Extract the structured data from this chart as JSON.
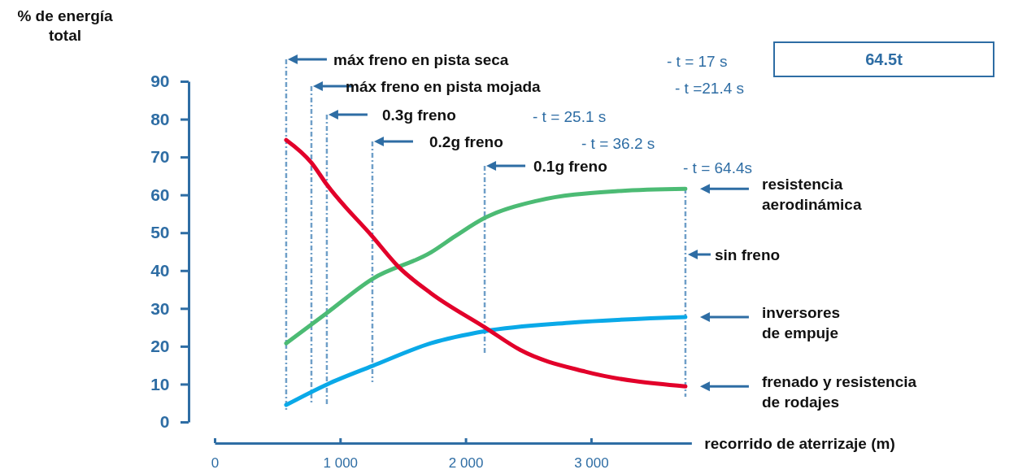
{
  "chart_data": {
    "type": "line",
    "ylabel": "% de energía total",
    "xlabel": "recorrido de aterrizaje (m)",
    "xlim": [
      0,
      3800
    ],
    "xticks": [
      0,
      {
        "value": 1000,
        "label": "1 000"
      },
      {
        "value": 2000,
        "label": "2 000"
      },
      {
        "value": 3000,
        "label": "3 000"
      }
    ],
    "ylim": [
      0,
      90
    ],
    "yticks": [
      0,
      10,
      20,
      30,
      40,
      50,
      60,
      70,
      80,
      90
    ],
    "grid": false,
    "marker": "none",
    "line_style": "solid",
    "series": [
      {
        "name": "resistencia aerodinámica",
        "color": "#4cbb74",
        "x": [
          570,
          894,
          1257,
          1724,
          1918,
          2158,
          2566,
          3215,
          3752
        ],
        "values": [
          20.8,
          28.8,
          37.8,
          44.8,
          49.1,
          54,
          58.4,
          61,
          61.6
        ]
      },
      {
        "name": "inversores de empuje",
        "color": "#0aa9e8",
        "x": [
          570,
          894,
          1257,
          1724,
          2158,
          2826,
          3752
        ],
        "values": [
          4.5,
          9.9,
          14.8,
          20.8,
          24,
          26.2,
          27.7
        ]
      },
      {
        "name": "frenado y resistencia de rodajes",
        "color": "#e2002a",
        "x": [
          570,
          771,
          894,
          1257,
          1465,
          1724,
          2158,
          2437,
          2955,
          3752
        ],
        "values": [
          74.5,
          68.5,
          62.7,
          49,
          41,
          34,
          24.9,
          19,
          13.3,
          9.4
        ]
      }
    ],
    "ref_lines": [
      {
        "axis": "x",
        "value": 570,
        "label": "máx freno en pista seca",
        "color": "#6f9fc8",
        "line_style": "dashed"
      },
      {
        "axis": "x",
        "value": 771,
        "label": "máx freno en pista mojada",
        "color": "#6f9fc8",
        "line_style": "dashed"
      },
      {
        "axis": "x",
        "value": 894,
        "label": "0.3g freno",
        "color": "#6f9fc8",
        "line_style": "dashed"
      },
      {
        "axis": "x",
        "value": 1257,
        "label": "0.2g freno",
        "color": "#6f9fc8",
        "line_style": "dashed"
      },
      {
        "axis": "x",
        "value": 2152,
        "label": "0.1g freno",
        "color": "#6f9fc8",
        "line_style": "dashed"
      },
      {
        "axis": "x",
        "value": 3752,
        "label": "sin freno",
        "color": "#6f9fc8",
        "line_style": "dashed"
      }
    ],
    "annotations": [
      "- t = 17 s",
      "- t =21.4 s",
      "- t = 25.1 s",
      "- t = 36.2 s",
      "- t = 64.4s",
      "64.5t"
    ]
  }
}
